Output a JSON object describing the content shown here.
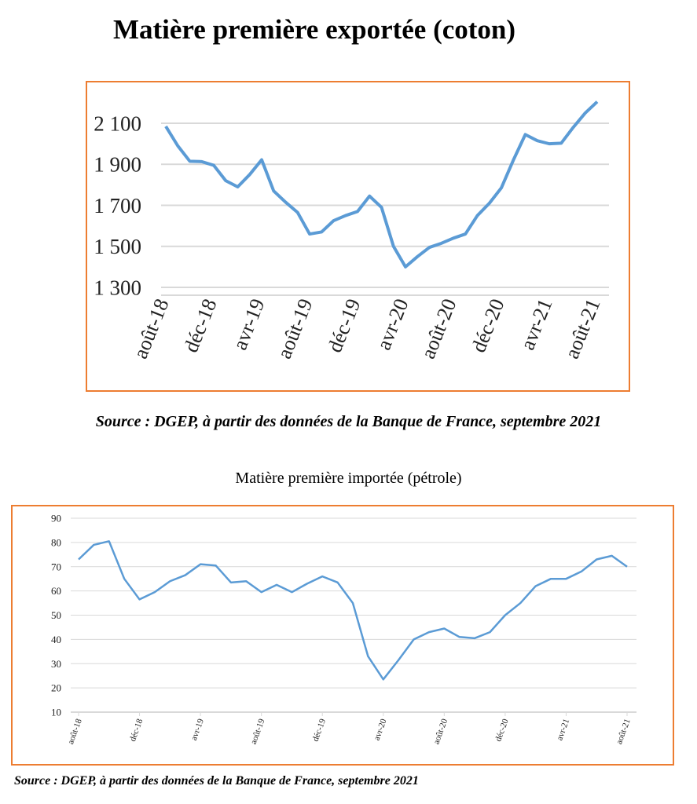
{
  "chart_data": [
    {
      "type": "line",
      "title": "Matière première exportée (coton)",
      "source": "Source : DGEP, à partir des données de la Banque de France, septembre 2021",
      "series": [
        {
          "name": "coton",
          "color": "#5B9BD5",
          "values": [
            2085,
            1990,
            1915,
            1913,
            1895,
            1820,
            1790,
            1850,
            1922,
            1770,
            1715,
            1665,
            1560,
            1570,
            1625,
            1650,
            1670,
            1745,
            1690,
            1500,
            1400,
            1450,
            1495,
            1515,
            1540,
            1560,
            1650,
            1710,
            1785,
            1920,
            2045,
            2015,
            2000,
            2003,
            2080,
            2150,
            2205
          ]
        }
      ],
      "ylim": [
        1300,
        2200
      ],
      "yticks": [
        1300,
        1500,
        1700,
        1900,
        2100
      ],
      "ytick_labels": [
        "1 300",
        "1 500",
        "1 700",
        "1 900",
        "2 100"
      ],
      "xtick_labels": [
        "août-18",
        "déc-18",
        "avr-19",
        "août-19",
        "déc-19",
        "avr-20",
        "août-20",
        "déc-20",
        "avr-21",
        "août-21"
      ],
      "grid": true
    },
    {
      "type": "line",
      "title": "Matière première importée (pétrole)",
      "source": "Source : DGEP, à partir des données de la Banque de France, septembre 2021",
      "series": [
        {
          "name": "pétrole",
          "color": "#5B9BD5",
          "values": [
            73,
            79,
            80.5,
            65,
            56.5,
            59.5,
            64,
            66.5,
            71,
            70.5,
            63.5,
            64,
            59.5,
            62.5,
            59.5,
            63,
            66,
            63.5,
            55,
            33,
            23.5,
            31.5,
            40,
            43,
            44.5,
            41,
            40.5,
            43,
            50,
            55,
            62,
            65,
            65,
            68,
            73,
            74.5,
            70
          ]
        }
      ],
      "ylim": [
        10,
        90
      ],
      "yticks": [
        10,
        20,
        30,
        40,
        50,
        60,
        70,
        80,
        90
      ],
      "ytick_labels": [
        "10",
        "20",
        "30",
        "40",
        "50",
        "60",
        "70",
        "80",
        "90"
      ],
      "xtick_labels": [
        "août-18",
        "déc-18",
        "avr-19",
        "août-19",
        "déc-19",
        "avr-20",
        "août-20",
        "déc-20",
        "avr-21",
        "août-21"
      ],
      "grid": true
    }
  ]
}
